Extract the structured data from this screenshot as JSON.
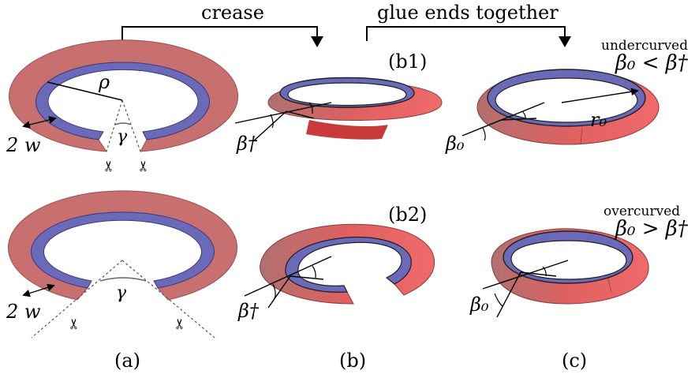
{
  "labels": {
    "crease": "crease",
    "glue": "glue ends together",
    "b1": "(b1)",
    "b2": "(b2)",
    "undercurved": "undercurved",
    "overcurved": "overcurved",
    "cond_under": "β₀ < β†",
    "cond_over": "β₀ > β†",
    "rho": "ρ",
    "gamma": "γ",
    "two_w": "2 w",
    "beta_dagger": "β†",
    "beta_0": "β₀",
    "r0": "r₀",
    "panel_a": "(a)",
    "panel_b": "(b)",
    "panel_c": "(c)",
    "scissors_icon": "✂"
  },
  "colors": {
    "outer_ring": "#c87070",
    "inner_ring": "#6a6ab8",
    "bright_red": "#e85050",
    "dark_red": "#c01818"
  }
}
